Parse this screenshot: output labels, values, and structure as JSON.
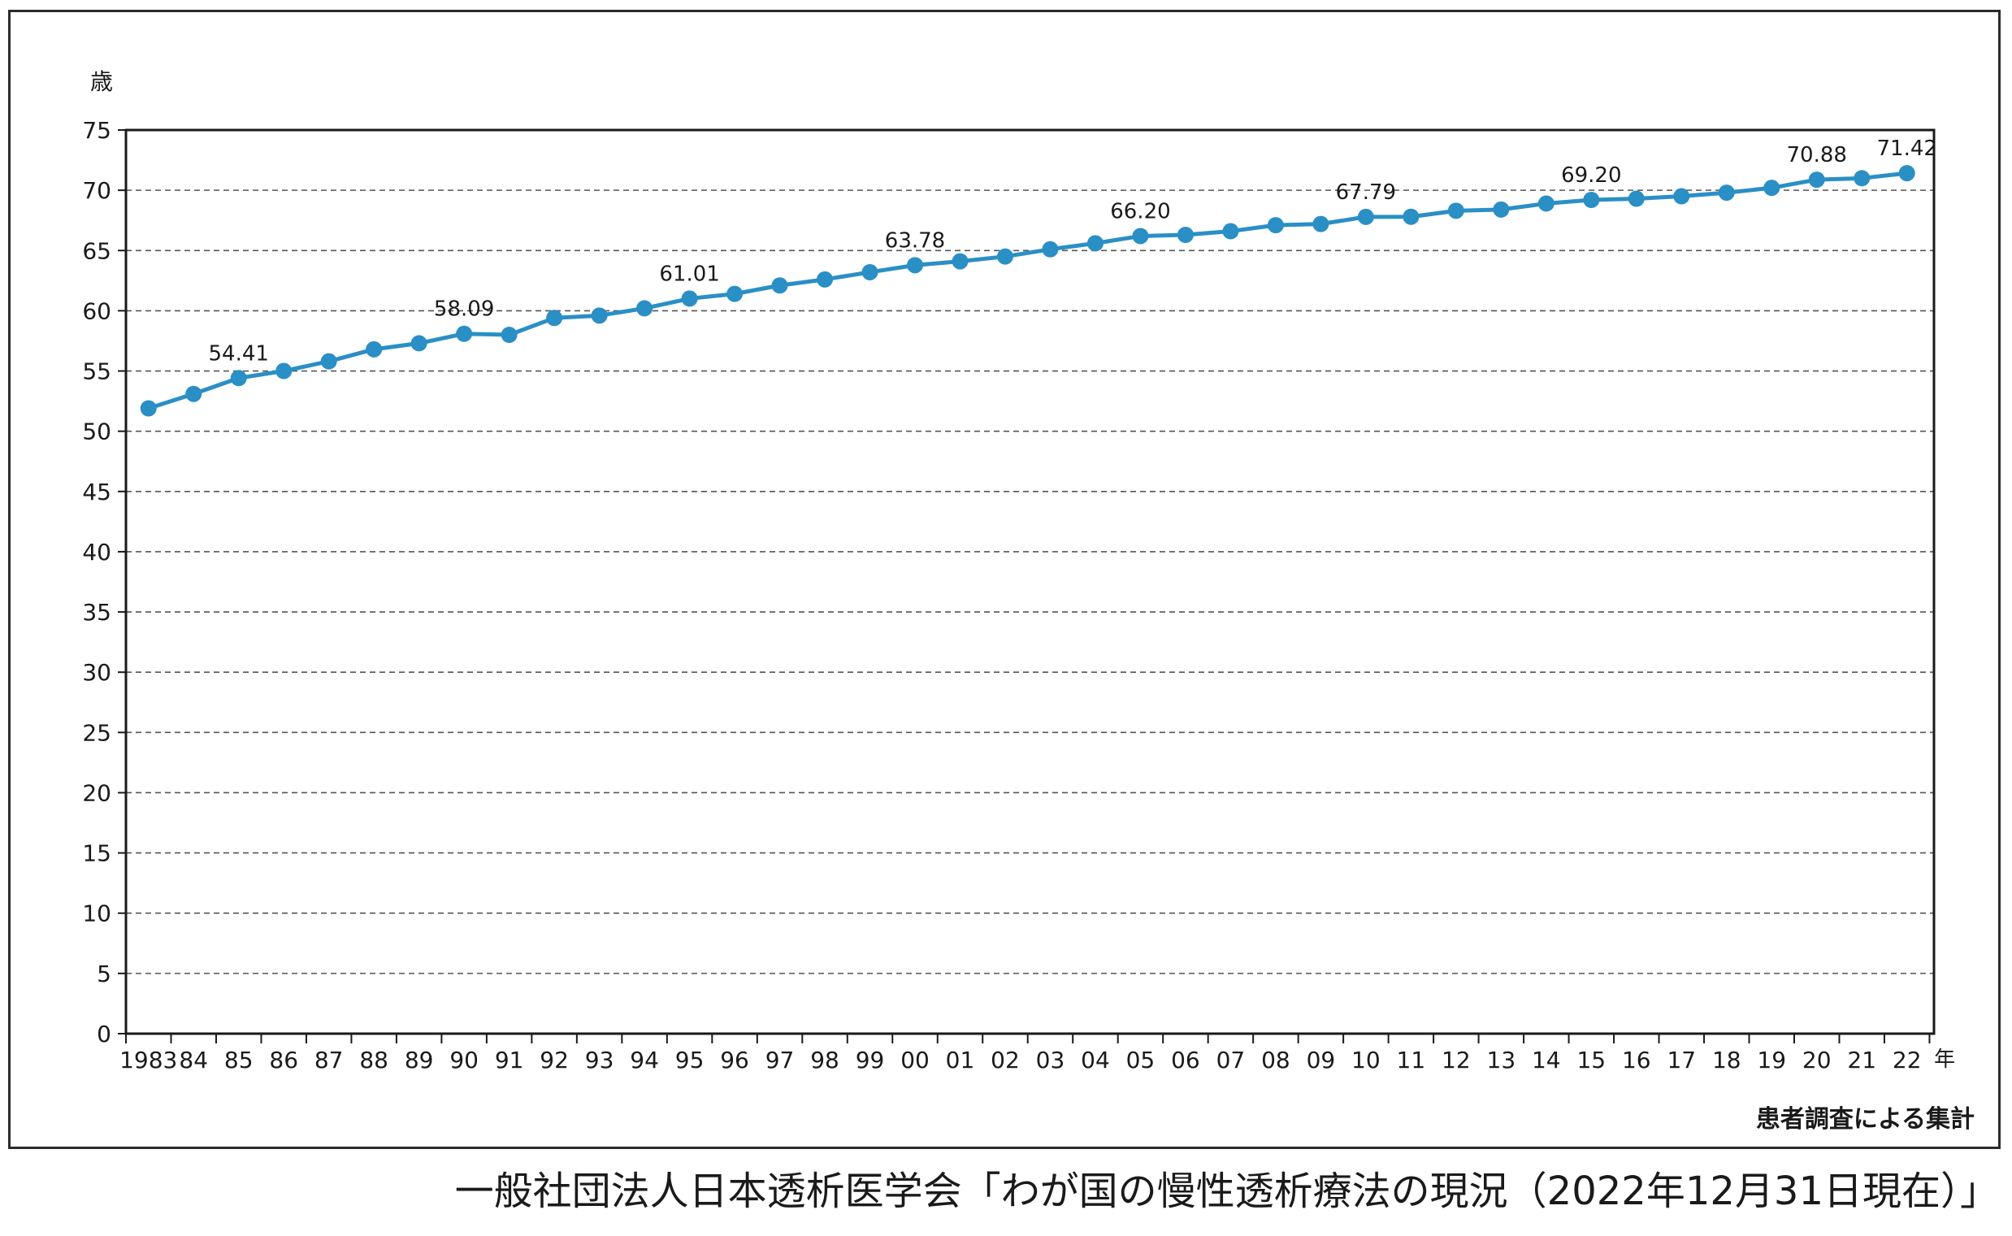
{
  "note": "患者調査による集計",
  "source": "一般社団法人日本透析医学会「わが国の慢性透析療法の現況（2022年12月31日現在）」",
  "chart_data": {
    "type": "line",
    "ylabel": "歳",
    "xlabel": "年",
    "ylim": [
      0,
      75
    ],
    "y_ticks": [
      0,
      5,
      10,
      15,
      20,
      25,
      30,
      35,
      40,
      45,
      50,
      55,
      60,
      65,
      70,
      75
    ],
    "grid": "horizontal dashed",
    "line_color": "#2a8fc5",
    "categories": [
      "1983",
      "84",
      "85",
      "86",
      "87",
      "88",
      "89",
      "90",
      "91",
      "92",
      "93",
      "94",
      "95",
      "96",
      "97",
      "98",
      "99",
      "00",
      "01",
      "02",
      "03",
      "04",
      "05",
      "06",
      "07",
      "08",
      "09",
      "10",
      "11",
      "12",
      "13",
      "14",
      "15",
      "16",
      "17",
      "18",
      "19",
      "20",
      "21",
      "22"
    ],
    "values": [
      51.9,
      53.1,
      54.41,
      55.0,
      55.8,
      56.8,
      57.3,
      58.09,
      58.0,
      59.4,
      59.6,
      60.2,
      61.01,
      61.4,
      62.1,
      62.6,
      63.2,
      63.78,
      64.1,
      64.5,
      65.1,
      65.6,
      66.2,
      66.3,
      66.6,
      67.1,
      67.2,
      67.79,
      67.8,
      68.3,
      68.4,
      68.9,
      69.2,
      69.3,
      69.5,
      69.8,
      70.2,
      70.88,
      71.0,
      71.42
    ],
    "data_labels": [
      {
        "index": 2,
        "text": "54.41"
      },
      {
        "index": 7,
        "text": "58.09"
      },
      {
        "index": 12,
        "text": "61.01"
      },
      {
        "index": 17,
        "text": "63.78"
      },
      {
        "index": 22,
        "text": "66.20"
      },
      {
        "index": 27,
        "text": "67.79"
      },
      {
        "index": 32,
        "text": "69.20"
      },
      {
        "index": 37,
        "text": "70.88"
      },
      {
        "index": 39,
        "text": "71.42"
      }
    ]
  }
}
